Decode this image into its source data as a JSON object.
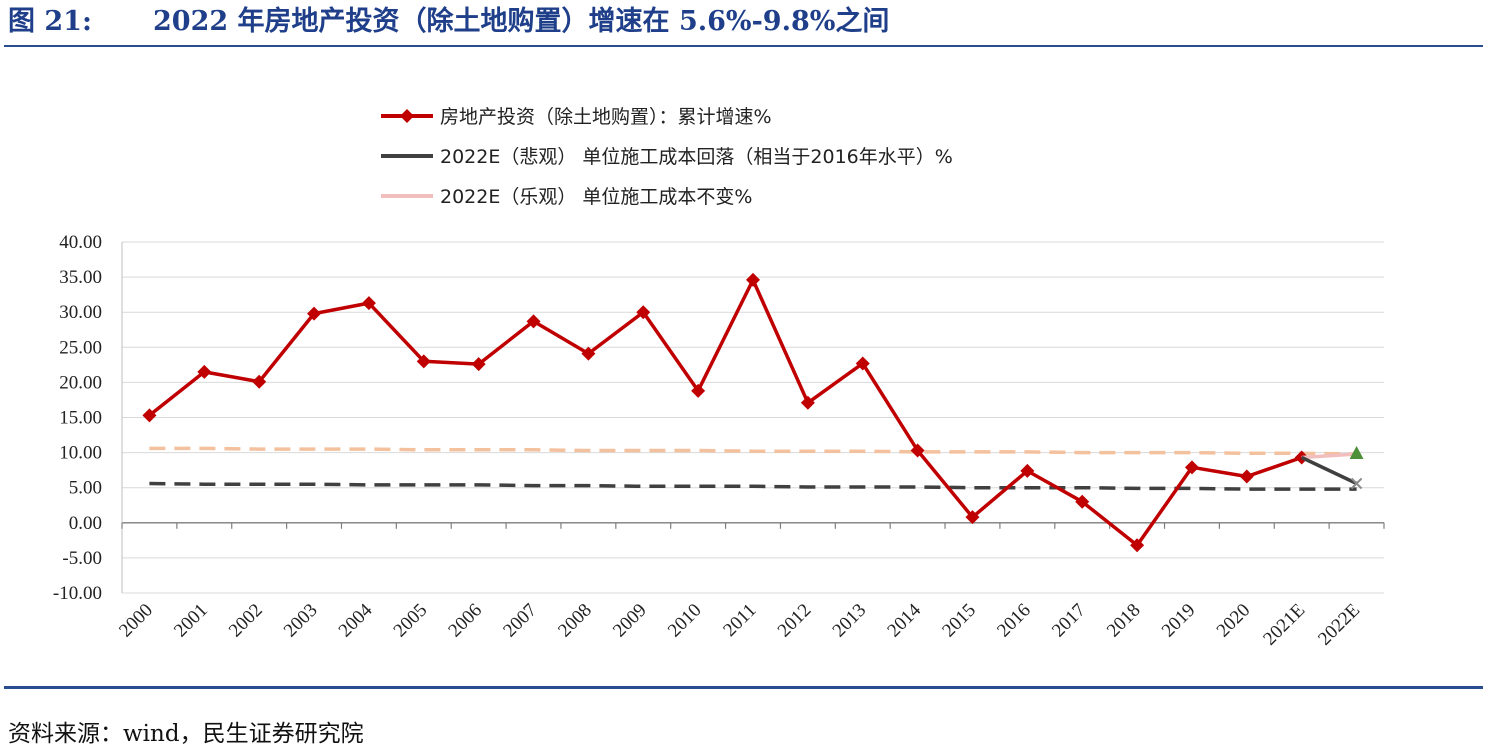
{
  "figure": {
    "number": "图 21:",
    "title": "2022 年房地产投资（除土地购置）增速在 5.6%-9.8%之间",
    "source": "资料来源：wind，民生证券研究院"
  },
  "colors": {
    "title": "#1f3f8a",
    "rule": "#2a4d8f",
    "actual": "#c00000",
    "pessimistic": "#404040",
    "optimistic": "#f2bdbd",
    "optimistic_dashed": "#f4c19e",
    "optimistic_marker": "#4e8f3a",
    "grid": "#d9d9d9"
  },
  "chart_data": {
    "type": "line",
    "categories": [
      "2000",
      "2001",
      "2002",
      "2003",
      "2004",
      "2005",
      "2006",
      "2007",
      "2008",
      "2009",
      "2010",
      "2011",
      "2012",
      "2013",
      "2014",
      "2015",
      "2016",
      "2017",
      "2018",
      "2019",
      "2020",
      "2021E",
      "2022E"
    ],
    "ylim": [
      -10,
      40
    ],
    "yticks": [
      "40.00",
      "35.00",
      "30.00",
      "25.00",
      "20.00",
      "15.00",
      "10.00",
      "5.00",
      "0.00",
      "-5.00",
      "-10.00"
    ],
    "grid": "horizontal",
    "legend_position": "top",
    "series": [
      {
        "name": "房地产投资（除土地购置）：累计增速%",
        "style": "solid-diamond",
        "values": [
          15.3,
          21.5,
          20.1,
          29.8,
          31.3,
          23.0,
          22.6,
          28.7,
          24.1,
          30.0,
          18.8,
          34.6,
          17.1,
          22.7,
          10.3,
          0.8,
          7.4,
          3.0,
          -3.2,
          7.9,
          6.6,
          9.3,
          null
        ]
      },
      {
        "name": "2022E（悲观） 单位施工成本回落（相当于2016年水平）%",
        "style": "solid-x",
        "values": [
          null,
          null,
          null,
          null,
          null,
          null,
          null,
          null,
          null,
          null,
          null,
          null,
          null,
          null,
          null,
          null,
          null,
          null,
          null,
          null,
          null,
          9.3,
          5.6
        ]
      },
      {
        "name": "2022E（乐观） 单位施工成本不变%",
        "style": "solid-triangle",
        "values": [
          null,
          null,
          null,
          null,
          null,
          null,
          null,
          null,
          null,
          null,
          null,
          null,
          null,
          null,
          null,
          null,
          null,
          null,
          null,
          null,
          null,
          9.3,
          9.8
        ]
      },
      {
        "name": "",
        "style": "dashed-trend-optimistic",
        "values": [
          10.6,
          10.6,
          10.5,
          10.5,
          10.5,
          10.4,
          10.4,
          10.4,
          10.3,
          10.3,
          10.3,
          10.2,
          10.2,
          10.2,
          10.1,
          10.1,
          10.1,
          10.0,
          10.0,
          10.0,
          9.9,
          9.9,
          9.8
        ]
      },
      {
        "name": "",
        "style": "dashed-trend-pessimistic",
        "values": [
          5.6,
          5.5,
          5.5,
          5.5,
          5.4,
          5.4,
          5.4,
          5.3,
          5.3,
          5.2,
          5.2,
          5.2,
          5.1,
          5.1,
          5.1,
          5.0,
          5.0,
          5.0,
          4.9,
          4.9,
          4.8,
          4.8,
          4.8
        ]
      }
    ]
  }
}
